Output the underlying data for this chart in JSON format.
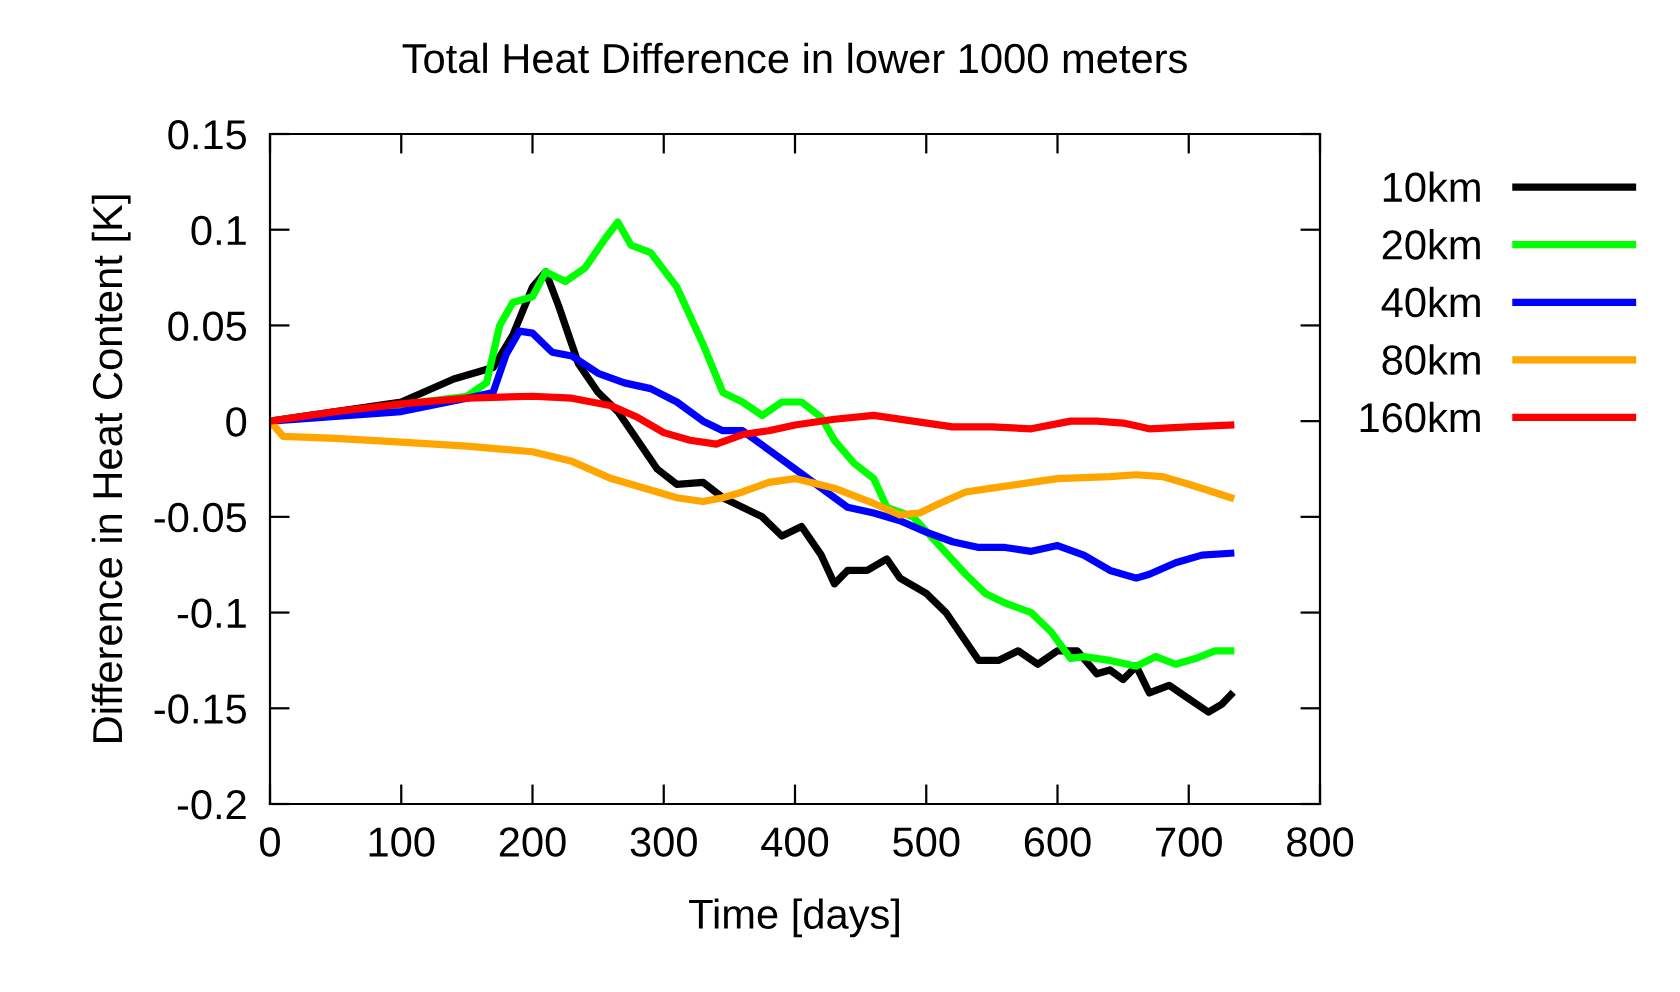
{
  "chart_data": {
    "type": "line",
    "title": "Total Heat Difference in lower 1000 meters",
    "xlabel": "Time [days]",
    "ylabel": "Difference in Heat Content [K]",
    "xlim": [
      0,
      800
    ],
    "xticks": [
      0,
      100,
      200,
      300,
      400,
      500,
      600,
      700,
      800
    ],
    "ylim": [
      -0.2,
      0.15
    ],
    "yticks": [
      -0.2,
      -0.15,
      -0.1,
      -0.05,
      0,
      0.05,
      0.1,
      0.15
    ],
    "grid": false,
    "legend": "right",
    "line_style": "solid",
    "marker": "none",
    "series": [
      {
        "name": "10km",
        "color": "#000000",
        "x": [
          0,
          100,
          140,
          170,
          185,
          200,
          210,
          220,
          235,
          250,
          265,
          280,
          295,
          310,
          330,
          345,
          360,
          375,
          390,
          405,
          420,
          430,
          440,
          455,
          470,
          480,
          500,
          515,
          530,
          540,
          555,
          570,
          585,
          600,
          615,
          630,
          640,
          650,
          660,
          670,
          685,
          700,
          715,
          725,
          732
        ],
        "values": [
          0,
          0.01,
          0.022,
          0.028,
          0.045,
          0.07,
          0.078,
          0.06,
          0.03,
          0.015,
          0.005,
          -0.01,
          -0.025,
          -0.033,
          -0.032,
          -0.04,
          -0.045,
          -0.05,
          -0.06,
          -0.055,
          -0.07,
          -0.085,
          -0.078,
          -0.078,
          -0.072,
          -0.082,
          -0.09,
          -0.1,
          -0.115,
          -0.125,
          -0.125,
          -0.12,
          -0.127,
          -0.12,
          -0.12,
          -0.132,
          -0.13,
          -0.135,
          -0.128,
          -0.142,
          -0.138,
          -0.145,
          -0.152,
          -0.148,
          -0.143
        ]
      },
      {
        "name": "20km",
        "color": "#00ff00",
        "x": [
          0,
          150,
          165,
          175,
          185,
          200,
          210,
          225,
          240,
          255,
          265,
          275,
          290,
          310,
          330,
          345,
          360,
          375,
          390,
          405,
          420,
          430,
          445,
          460,
          470,
          490,
          510,
          530,
          545,
          560,
          580,
          595,
          610,
          620,
          640,
          660,
          675,
          690,
          705,
          720,
          732
        ],
        "values": [
          0,
          0.013,
          0.02,
          0.05,
          0.062,
          0.065,
          0.078,
          0.073,
          0.08,
          0.095,
          0.104,
          0.092,
          0.088,
          0.07,
          0.04,
          0.015,
          0.01,
          0.003,
          0.01,
          0.01,
          0.002,
          -0.01,
          -0.022,
          -0.03,
          -0.045,
          -0.05,
          -0.065,
          -0.08,
          -0.09,
          -0.095,
          -0.1,
          -0.11,
          -0.124,
          -0.123,
          -0.125,
          -0.128,
          -0.123,
          -0.127,
          -0.124,
          -0.12,
          -0.12
        ]
      },
      {
        "name": "40km",
        "color": "#0000ff",
        "x": [
          0,
          100,
          150,
          170,
          180,
          190,
          200,
          215,
          230,
          250,
          270,
          290,
          310,
          330,
          345,
          360,
          380,
          400,
          420,
          440,
          460,
          480,
          500,
          520,
          540,
          560,
          580,
          600,
          620,
          640,
          660,
          670,
          690,
          710,
          732
        ],
        "values": [
          0,
          0.005,
          0.012,
          0.015,
          0.035,
          0.047,
          0.046,
          0.036,
          0.034,
          0.025,
          0.02,
          0.017,
          0.01,
          0.0,
          -0.005,
          -0.005,
          -0.015,
          -0.025,
          -0.035,
          -0.045,
          -0.048,
          -0.052,
          -0.058,
          -0.063,
          -0.066,
          -0.066,
          -0.068,
          -0.065,
          -0.07,
          -0.078,
          -0.082,
          -0.08,
          -0.074,
          -0.07,
          -0.069
        ]
      },
      {
        "name": "80km",
        "color": "#ffa500",
        "x": [
          0,
          10,
          50,
          100,
          150,
          200,
          230,
          260,
          290,
          310,
          330,
          345,
          360,
          380,
          400,
          430,
          460,
          480,
          495,
          510,
          530,
          550,
          580,
          600,
          640,
          660,
          680,
          700,
          732
        ],
        "values": [
          0,
          -0.008,
          -0.009,
          -0.011,
          -0.013,
          -0.016,
          -0.021,
          -0.03,
          -0.036,
          -0.04,
          -0.042,
          -0.04,
          -0.037,
          -0.032,
          -0.03,
          -0.035,
          -0.043,
          -0.049,
          -0.048,
          -0.043,
          -0.037,
          -0.035,
          -0.032,
          -0.03,
          -0.029,
          -0.028,
          -0.029,
          -0.033,
          -0.04
        ]
      },
      {
        "name": "160km",
        "color": "#ff0000",
        "x": [
          0,
          50,
          100,
          150,
          200,
          230,
          260,
          280,
          300,
          320,
          340,
          360,
          380,
          400,
          430,
          460,
          490,
          520,
          550,
          580,
          610,
          630,
          650,
          670,
          700,
          732
        ],
        "values": [
          0,
          0.005,
          0.009,
          0.012,
          0.013,
          0.012,
          0.008,
          0.002,
          -0.006,
          -0.01,
          -0.012,
          -0.007,
          -0.005,
          -0.002,
          0.001,
          0.003,
          0.0,
          -0.003,
          -0.003,
          -0.004,
          0.0,
          0.0,
          -0.001,
          -0.004,
          -0.003,
          -0.002
        ]
      }
    ]
  }
}
